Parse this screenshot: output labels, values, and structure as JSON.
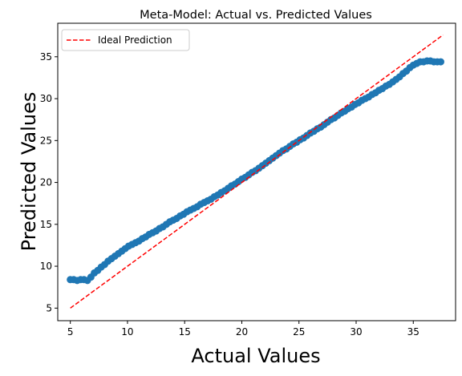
{
  "chart_data": {
    "type": "scatter",
    "title": "Meta-Model: Actual vs. Predicted Values",
    "xlabel": "Actual Values",
    "ylabel": "Predicted Values",
    "xlim": [
      3.9,
      38.7
    ],
    "ylim": [
      3.5,
      39.0
    ],
    "xticks": [
      5,
      10,
      15,
      20,
      25,
      30,
      35
    ],
    "yticks": [
      5,
      10,
      15,
      20,
      25,
      30,
      35
    ],
    "grid": false,
    "legend_position": "top-left",
    "colors": {
      "points": "#1f77b4",
      "ideal": "#ff0000"
    },
    "series": [
      {
        "name": "",
        "kind": "scatter",
        "x": [
          5.0,
          5.3,
          5.6,
          5.9,
          6.2,
          6.5,
          6.8,
          7.1,
          7.4,
          7.7,
          8.0,
          8.3,
          8.6,
          8.9,
          9.2,
          9.5,
          9.8,
          10.1,
          10.4,
          10.7,
          11.0,
          11.3,
          11.6,
          11.9,
          12.2,
          12.5,
          12.8,
          13.1,
          13.4,
          13.7,
          14.0,
          14.3,
          14.6,
          14.9,
          15.2,
          15.5,
          15.8,
          16.1,
          16.4,
          16.7,
          17.0,
          17.3,
          17.6,
          17.9,
          18.2,
          18.5,
          18.8,
          19.1,
          19.4,
          19.7,
          20.0,
          20.3,
          20.6,
          20.9,
          21.2,
          21.5,
          21.8,
          22.1,
          22.4,
          22.7,
          23.0,
          23.3,
          23.6,
          23.9,
          24.2,
          24.5,
          24.8,
          25.1,
          25.4,
          25.7,
          26.0,
          26.3,
          26.6,
          26.9,
          27.2,
          27.5,
          27.8,
          28.1,
          28.4,
          28.7,
          29.0,
          29.3,
          29.6,
          29.9,
          30.2,
          30.5,
          30.8,
          31.1,
          31.4,
          31.7,
          32.0,
          32.3,
          32.6,
          32.9,
          33.2,
          33.5,
          33.8,
          34.1,
          34.4,
          34.7,
          35.0,
          35.3,
          35.6,
          35.9,
          36.2,
          36.5,
          36.8,
          37.1,
          37.4
        ],
        "y": [
          8.4,
          8.4,
          8.3,
          8.4,
          8.4,
          8.3,
          8.7,
          9.2,
          9.5,
          9.9,
          10.2,
          10.6,
          10.9,
          11.2,
          11.5,
          11.8,
          12.1,
          12.4,
          12.6,
          12.8,
          13.0,
          13.3,
          13.5,
          13.8,
          14.0,
          14.2,
          14.5,
          14.7,
          15.0,
          15.3,
          15.5,
          15.7,
          16.0,
          16.2,
          16.5,
          16.7,
          16.9,
          17.1,
          17.4,
          17.6,
          17.8,
          18.0,
          18.3,
          18.5,
          18.8,
          19.0,
          19.3,
          19.6,
          19.8,
          20.1,
          20.4,
          20.6,
          20.9,
          21.2,
          21.4,
          21.7,
          22.0,
          22.3,
          22.6,
          22.9,
          23.2,
          23.5,
          23.8,
          24.0,
          24.3,
          24.6,
          24.8,
          25.1,
          25.3,
          25.6,
          25.9,
          26.1,
          26.4,
          26.6,
          26.9,
          27.2,
          27.5,
          27.7,
          28.0,
          28.3,
          28.5,
          28.8,
          29.0,
          29.3,
          29.5,
          29.8,
          30.0,
          30.2,
          30.5,
          30.7,
          31.0,
          31.2,
          31.5,
          31.7,
          32.0,
          32.3,
          32.6,
          33.0,
          33.3,
          33.7,
          34.0,
          34.2,
          34.4,
          34.4,
          34.5,
          34.5,
          34.4,
          34.4,
          34.4
        ]
      },
      {
        "name": "Ideal Prediction",
        "kind": "line",
        "style": "dashed",
        "x": [
          5.0,
          37.6
        ],
        "y": [
          5.0,
          37.6
        ]
      }
    ]
  }
}
